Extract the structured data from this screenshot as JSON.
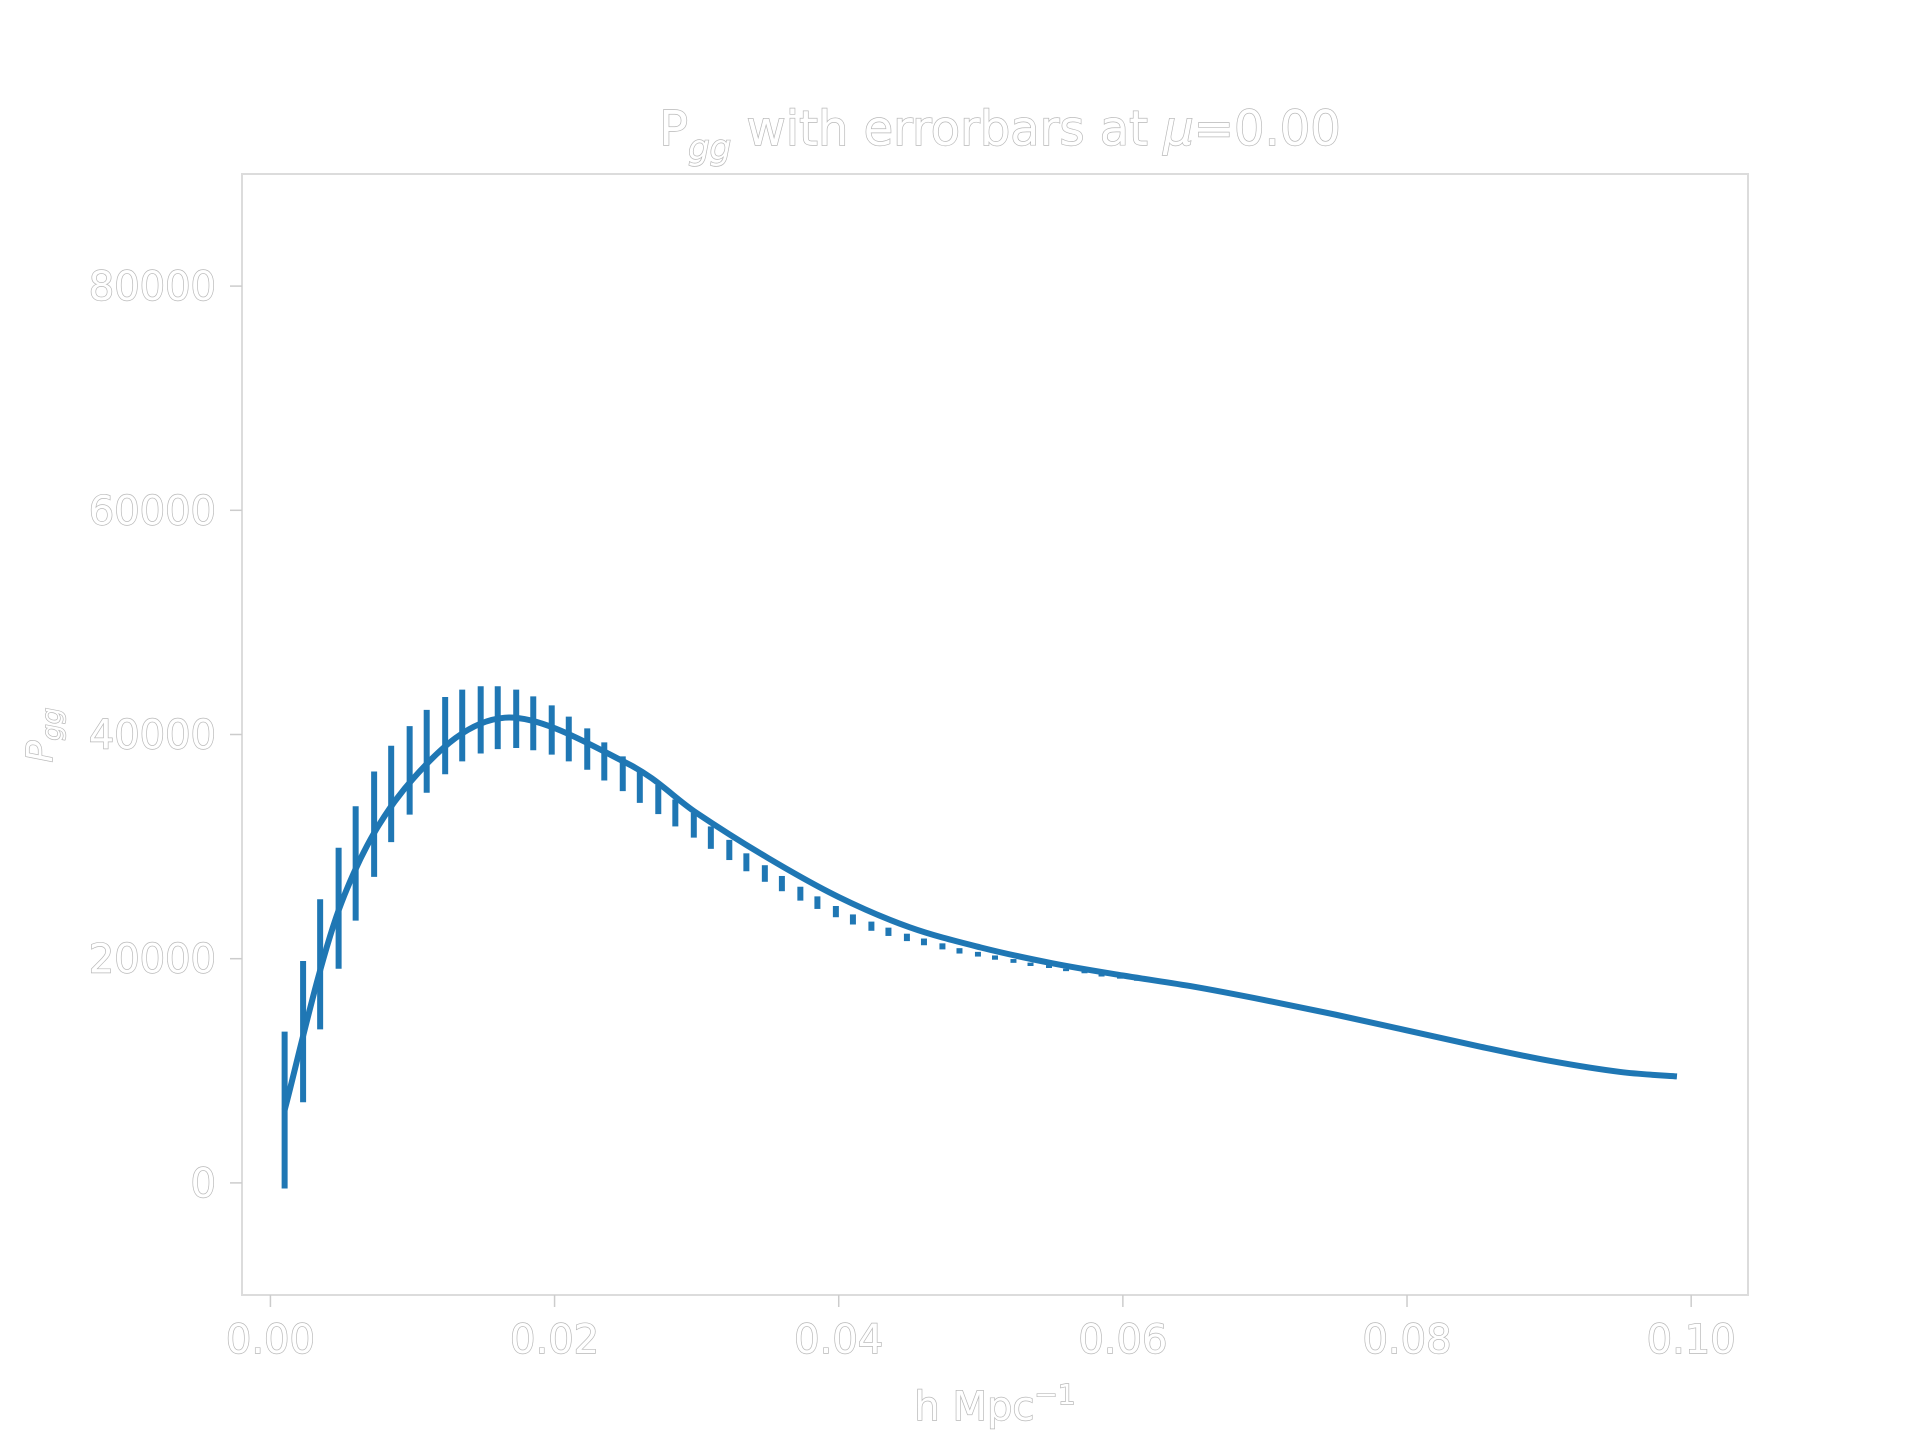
{
  "chart_data": {
    "type": "line",
    "title_main": "P",
    "title_sub": "gg",
    "title_rest": " with errorbars at ",
    "title_mu": "μ",
    "title_value": "=0.00",
    "xlabel": "h Mpc",
    "xlabel_sup": "−1",
    "ylabel_main": "P",
    "ylabel_sub": "gg",
    "xlim": [
      -0.002,
      0.104
    ],
    "ylim": [
      -10000,
      90000
    ],
    "x_ticks": [
      0.0,
      0.02,
      0.04,
      0.06,
      0.08,
      0.1
    ],
    "x_tick_labels": [
      "0.00",
      "0.02",
      "0.04",
      "0.06",
      "0.08",
      "0.10"
    ],
    "y_ticks": [
      0,
      20000,
      40000,
      60000,
      80000
    ],
    "y_tick_labels": [
      "0",
      "20000",
      "40000",
      "60000",
      "80000"
    ],
    "grid": false,
    "series": [
      {
        "color": "#1f77b4",
        "x": [
          0.001,
          0.005,
          0.01,
          0.0165,
          0.025,
          0.03,
          0.035,
          0.04,
          0.045,
          0.05,
          0.055,
          0.06,
          0.065,
          0.07,
          0.075,
          0.08,
          0.085,
          0.09,
          0.095,
          0.099
        ],
        "y": [
          6500,
          25000,
          36000,
          41500,
          37500,
          33000,
          29000,
          25500,
          22800,
          21000,
          19600,
          18500,
          17500,
          16300,
          15000,
          13600,
          12200,
          10900,
          9900,
          9500
        ]
      }
    ],
    "errorbars": {
      "color": "#1f77b4",
      "x": [
        0.001,
        0.0023,
        0.0035,
        0.0048,
        0.006,
        0.0073,
        0.0085,
        0.0098,
        0.011,
        0.0123,
        0.0135,
        0.0148,
        0.016,
        0.0173,
        0.0185,
        0.0198,
        0.021,
        0.0223,
        0.0235,
        0.0248,
        0.026,
        0.0273,
        0.0285,
        0.0298,
        0.031,
        0.0323,
        0.0335,
        0.0348,
        0.036,
        0.0373,
        0.0385,
        0.0398,
        0.041,
        0.0423,
        0.0435,
        0.0448,
        0.046,
        0.0473,
        0.0485,
        0.0498,
        0.051,
        0.0523,
        0.0535,
        0.0548,
        0.056,
        0.0573,
        0.0585,
        0.0598,
        0.061,
        0.0623,
        0.0635
      ],
      "y": [
        6500,
        13500,
        19500,
        24500,
        28500,
        32000,
        34700,
        36800,
        38500,
        39900,
        40800,
        41300,
        41500,
        41400,
        41000,
        40400,
        39600,
        38700,
        37600,
        36500,
        35300,
        34200,
        33000,
        31900,
        30800,
        29700,
        28600,
        27600,
        26700,
        25800,
        25000,
        24200,
        23500,
        22900,
        22400,
        21900,
        21500,
        21100,
        20700,
        20400,
        20100,
        19800,
        19500,
        19300,
        19000,
        18800,
        18500,
        18300,
        18100,
        17900,
        17700
      ],
      "err": [
        7000,
        6300,
        5800,
        5400,
        5100,
        4700,
        4300,
        3950,
        3700,
        3450,
        3200,
        3000,
        2800,
        2600,
        2400,
        2200,
        2000,
        1850,
        1700,
        1550,
        1400,
        1300,
        1200,
        1100,
        1000,
        900,
        800,
        740,
        680,
        620,
        560,
        500,
        450,
        410,
        370,
        330,
        300,
        270,
        240,
        210,
        190,
        170,
        150,
        130,
        110,
        100,
        90,
        80,
        70,
        60,
        50
      ]
    }
  }
}
